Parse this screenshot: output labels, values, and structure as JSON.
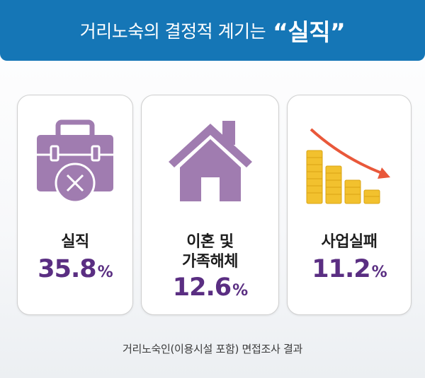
{
  "header": {
    "title": "거리노숙의 결정적 계기는",
    "emphasis": "“실직”"
  },
  "colors": {
    "header_bg": "#1576b6",
    "icon_purple": "#a07cb0",
    "value_purple": "#5a2e82",
    "coin_gold": "#f2c12e",
    "arrow_red": "#e9583a"
  },
  "cards": [
    {
      "icon": "briefcase-x-icon",
      "label_lines": [
        "실직"
      ],
      "value": "35.8",
      "unit": "%"
    },
    {
      "icon": "house-icon",
      "label_lines": [
        "이혼 및",
        "가족해체"
      ],
      "value": "12.6",
      "unit": "%"
    },
    {
      "icon": "declining-coins-chart-icon",
      "label_lines": [
        "사업실패"
      ],
      "value": "11.2",
      "unit": "%"
    }
  ],
  "footer": {
    "source": "거리노숙인(이용시설 포함) 면접조사 결과"
  }
}
